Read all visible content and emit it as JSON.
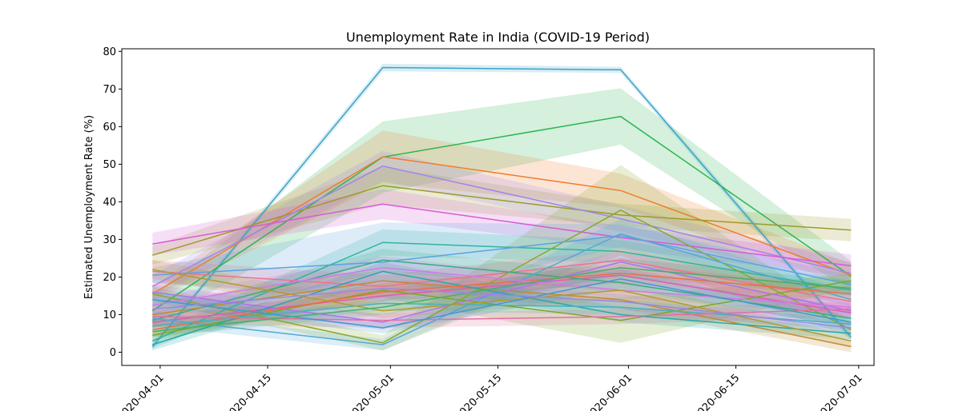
{
  "chart_data": {
    "type": "line",
    "title": "Unemployment Rate in India (COVID-19 Period)",
    "xlabel": "",
    "ylabel": "Estimated Unemployment Rate (%)",
    "x_dates": [
      "2020-03-31",
      "2020-04-30",
      "2020-05-31",
      "2020-06-30"
    ],
    "xlim": [
      "2020-03-27",
      "2020-07-03"
    ],
    "ylim": [
      -3.5,
      80.7
    ],
    "xticks": [
      "2020-04-01",
      "2020-04-15",
      "2020-05-01",
      "2020-05-15",
      "2020-06-01",
      "2020-06-15",
      "2020-07-01"
    ],
    "yticks": [
      0,
      10,
      20,
      30,
      40,
      50,
      60,
      70,
      80
    ],
    "grid": false,
    "legend": "none",
    "series": [
      {
        "color": "#3ba3c9",
        "values": [
          1.5,
          75.7,
          75.1,
          4.0
        ],
        "band": [
          0.8,
          1.0,
          0.8,
          1.0
        ]
      },
      {
        "color": "#2eb551",
        "values": [
          11.0,
          51.9,
          62.7,
          20.2
        ],
        "band": [
          4.0,
          9.5,
          7.5,
          4.0
        ]
      },
      {
        "color": "#ee7d2d",
        "values": [
          15.5,
          52.0,
          43.0,
          20.5
        ],
        "band": [
          2.0,
          7.0,
          4.5,
          3.0
        ]
      },
      {
        "color": "#9d9a2b",
        "values": [
          25.8,
          44.3,
          36.5,
          32.5
        ],
        "band": [
          2.5,
          5.0,
          3.0,
          3.0
        ]
      },
      {
        "color": "#a085f0",
        "values": [
          17.5,
          49.5,
          35.5,
          21.0
        ],
        "band": [
          3.0,
          4.0,
          3.5,
          3.0
        ]
      },
      {
        "color": "#d65bd6",
        "values": [
          28.8,
          39.4,
          30.5,
          23.0
        ],
        "band": [
          3.0,
          4.0,
          3.0,
          3.0
        ]
      },
      {
        "color": "#2fb59a",
        "values": [
          3.0,
          29.2,
          26.8,
          16.5
        ],
        "band": [
          2.0,
          3.5,
          3.0,
          2.5
        ]
      },
      {
        "color": "#88a82a",
        "values": [
          15.5,
          2.5,
          37.8,
          6.0
        ],
        "band": [
          2.0,
          2.0,
          12.0,
          2.0
        ]
      },
      {
        "color": "#f2708f",
        "values": [
          21.5,
          17.5,
          24.5,
          13.5
        ],
        "band": [
          3.0,
          3.0,
          3.0,
          3.0
        ]
      },
      {
        "color": "#5ba2e0",
        "values": [
          20.5,
          24.0,
          31.0,
          18.0
        ],
        "band": [
          2.0,
          10.5,
          3.0,
          2.5
        ]
      },
      {
        "color": "#e05bb0",
        "values": [
          8.0,
          15.0,
          20.5,
          10.5
        ],
        "band": [
          1.5,
          2.0,
          2.0,
          1.5
        ]
      },
      {
        "color": "#36ad7c",
        "values": [
          8.5,
          24.5,
          18.5,
          9.0
        ],
        "band": [
          2.0,
          3.0,
          2.5,
          2.0
        ]
      },
      {
        "color": "#c18a33",
        "values": [
          10.0,
          19.0,
          14.0,
          1.5
        ],
        "band": [
          3.5,
          3.0,
          2.5,
          1.5
        ]
      },
      {
        "color": "#52a8d6",
        "values": [
          9.0,
          2.0,
          31.5,
          14.0
        ],
        "band": [
          2.0,
          1.5,
          4.0,
          2.0
        ]
      },
      {
        "color": "#7aa828",
        "values": [
          4.5,
          16.5,
          8.5,
          19.0
        ],
        "band": [
          1.5,
          2.0,
          6.0,
          2.0
        ]
      },
      {
        "color": "#a875f0",
        "values": [
          16.0,
          8.0,
          24.0,
          11.0
        ],
        "band": [
          2.0,
          2.0,
          3.0,
          2.0
        ]
      },
      {
        "color": "#25a8a8",
        "values": [
          2.0,
          21.5,
          10.0,
          5.0
        ],
        "band": [
          1.5,
          2.5,
          2.0,
          1.5
        ]
      },
      {
        "color": "#ed6d4a",
        "values": [
          6.0,
          16.0,
          21.0,
          15.5
        ],
        "band": [
          2.0,
          2.5,
          2.5,
          2.0
        ]
      },
      {
        "color": "#d27ae6",
        "values": [
          12.5,
          22.5,
          16.5,
          12.0
        ],
        "band": [
          2.0,
          3.0,
          2.0,
          2.0
        ]
      },
      {
        "color": "#48b0c0",
        "values": [
          7.0,
          13.0,
          12.0,
          7.5
        ],
        "band": [
          1.5,
          2.0,
          2.0,
          1.5
        ]
      },
      {
        "color": "#b59a30",
        "values": [
          22.0,
          11.0,
          16.5,
          3.0
        ],
        "band": [
          2.5,
          2.0,
          2.5,
          1.5
        ]
      },
      {
        "color": "#e26fa0",
        "values": [
          9.5,
          8.5,
          9.5,
          11.5
        ],
        "band": [
          2.0,
          2.0,
          2.0,
          2.0
        ]
      },
      {
        "color": "#3d9ad0",
        "values": [
          14.0,
          6.5,
          19.5,
          8.0
        ],
        "band": [
          2.0,
          1.5,
          2.5,
          1.5
        ]
      },
      {
        "color": "#44b070",
        "values": [
          5.5,
          12.0,
          22.5,
          17.0
        ],
        "band": [
          1.5,
          2.0,
          2.5,
          2.0
        ]
      },
      {
        "color": "#9b86e8",
        "values": [
          11.5,
          17.0,
          13.5,
          6.5
        ],
        "band": [
          2.0,
          2.5,
          2.0,
          1.5
        ]
      }
    ]
  }
}
